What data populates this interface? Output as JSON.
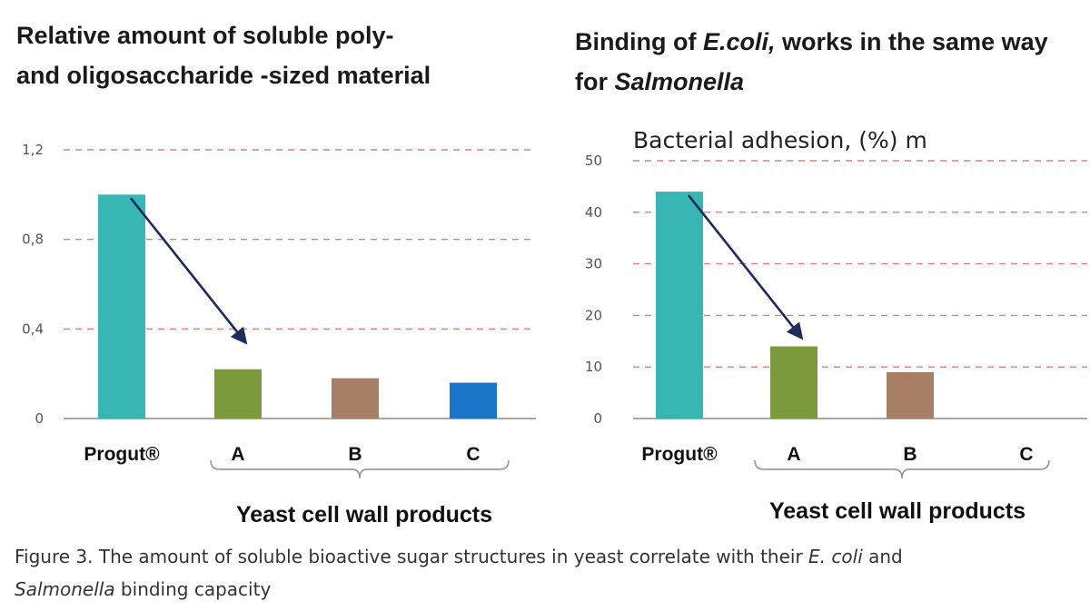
{
  "chart_data": [
    {
      "type": "bar",
      "title": "Relative amount of soluble poly- and oligosaccharide -sized material",
      "title_lines": [
        "Relative amount of soluble poly-",
        "and oligosaccharide -sized material"
      ],
      "categories": [
        "Progut®",
        "A",
        "B",
        "C"
      ],
      "values": [
        1.0,
        0.22,
        0.18,
        0.16
      ],
      "bar_colors": [
        "#38b6b4",
        "#7a9a3c",
        "#a67f64",
        "#1a74c8"
      ],
      "ylim": [
        0,
        1.2
      ],
      "yticks": [
        0,
        0.4,
        0.8,
        1.2
      ],
      "ytick_labels": [
        "0",
        "0,4",
        "0,8",
        "1,2"
      ],
      "grid": "dashed",
      "grid_color": "#d9827a",
      "group_label": "Yeast cell wall products",
      "arrow": {
        "from": "Progut®",
        "to": "A",
        "color": "#1f2b5c"
      }
    },
    {
      "type": "bar",
      "title": "Binding of E.coli, works in the same way for Salmonella",
      "title_lines": [
        "Binding of E.coli, works in the same way",
        "for Salmonella"
      ],
      "subtitle": "Bacterial adhesion, (%) m",
      "categories": [
        "Progut®",
        "A",
        "B",
        "C"
      ],
      "values": [
        44,
        14,
        9,
        0
      ],
      "bar_colors": [
        "#38b6b4",
        "#7a9a3c",
        "#a67f64",
        "#1a74c8"
      ],
      "ylim": [
        0,
        50
      ],
      "yticks": [
        0,
        10,
        20,
        30,
        40,
        50
      ],
      "ytick_labels": [
        "0",
        "10",
        "20",
        "30",
        "40",
        "50"
      ],
      "grid": "dashed",
      "grid_color": "#d9827a",
      "group_label": "Yeast cell wall products",
      "arrow": {
        "from": "Progut®",
        "to": "A",
        "color": "#1f2b5c"
      }
    }
  ],
  "caption": {
    "part1": "Figure 3. The amount of soluble bioactive sugar structures in yeast correlate with their ",
    "ecoli": "E. coli",
    "part2": " and ",
    "salmonella": "Salmonella",
    "part3": " binding capacity"
  }
}
